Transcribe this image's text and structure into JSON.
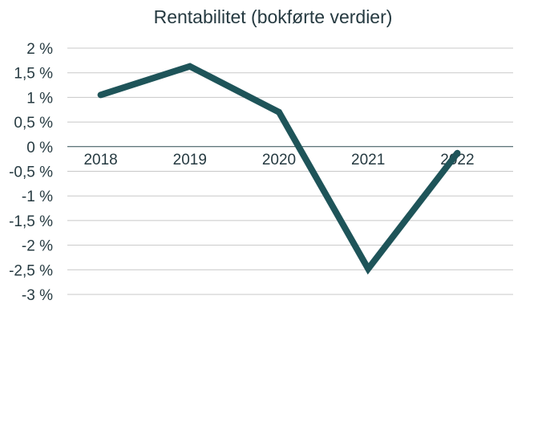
{
  "chart_data": {
    "type": "line",
    "title": "Rentabilitet (bokførte verdier)",
    "xlabel": "",
    "ylabel": "",
    "categories": [
      "2018",
      "2019",
      "2020",
      "2021",
      "2022"
    ],
    "series": [
      {
        "values": [
          1.05,
          1.63,
          0.7,
          -2.48,
          -0.13
        ]
      }
    ],
    "ylim": [
      -3,
      2
    ],
    "yticks": [
      2,
      1.5,
      1,
      0.5,
      0,
      -0.5,
      -1,
      -1.5,
      -2,
      -2.5,
      -3
    ],
    "ytick_labels": [
      "2 %",
      "1,5 %",
      "1 %",
      "0,5 %",
      "0 %",
      "-0,5 %",
      "-1 %",
      "-1,5 %",
      "-2 %",
      "-2,5 %",
      "-3 %"
    ],
    "grid": true,
    "legend": "none",
    "line_color": "#1e5459"
  }
}
